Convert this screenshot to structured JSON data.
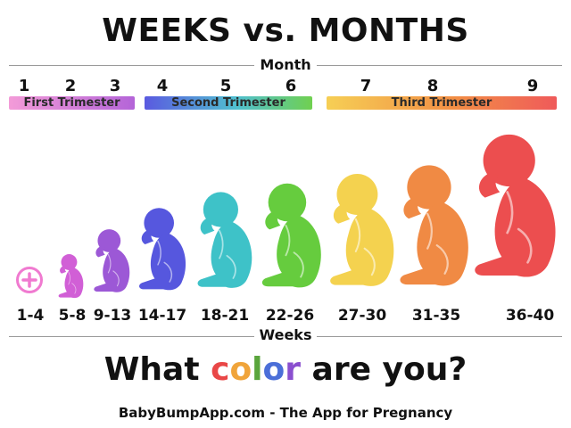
{
  "title": "WEEKS vs. MONTHS",
  "month_axis_label": "Month",
  "weeks_axis_label": "Weeks",
  "months": [
    "1",
    "2",
    "3",
    "4",
    "5",
    "6",
    "7",
    "8",
    "9"
  ],
  "trimesters": [
    {
      "label": "First Trimester"
    },
    {
      "label": "Second Trimester"
    },
    {
      "label": "Third Trimester"
    }
  ],
  "weeks": [
    "1-4",
    "5-8",
    "9-13",
    "14-17",
    "18-21",
    "22-26",
    "27-30",
    "31-35",
    "36-40"
  ],
  "fetus_colors": [
    "#f398dc",
    "#d15fd6",
    "#9c58d6",
    "#5657de",
    "#3ec2c8",
    "#66cc3e",
    "#f4d24f",
    "#f08a44",
    "#ec4e4f"
  ],
  "question": {
    "before": "What ",
    "color_letters": [
      "c",
      "o",
      "l",
      "o",
      "r"
    ],
    "color_letter_colors": [
      "#e94747",
      "#f0a43a",
      "#5aa53c",
      "#4b6fd8",
      "#8a4fcf"
    ],
    "after": " are you?"
  },
  "footer": "BabyBumpApp.com - The App for Pregnancy",
  "icons": {
    "week_1_4": "plus-circle-icon"
  }
}
